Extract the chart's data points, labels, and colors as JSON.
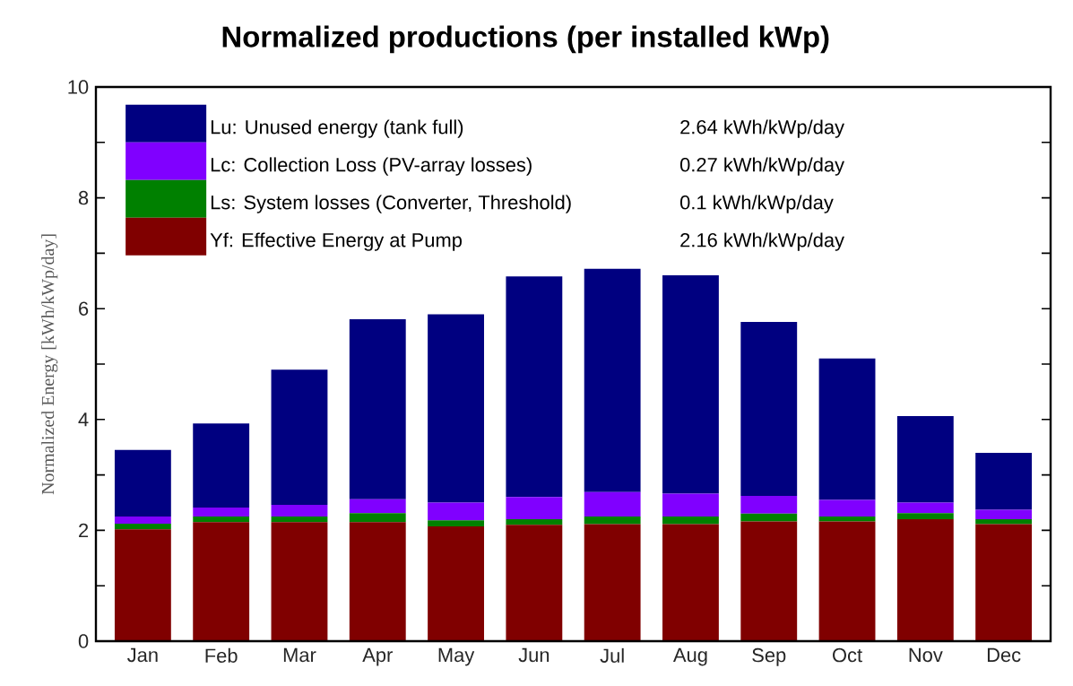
{
  "chart_data": {
    "type": "bar",
    "title": "Normalized productions (per installed kWp)",
    "ylabel": "Normalized Energy [kWh/kWp/day]",
    "categories": [
      "Jan",
      "Feb",
      "Mar",
      "Apr",
      "May",
      "Jun",
      "Jul",
      "Aug",
      "Sep",
      "Oct",
      "Nov",
      "Dec"
    ],
    "stacked": true,
    "series": [
      {
        "name": "Yf: Effective Energy at Pump",
        "color": "#800000",
        "values": [
          2.02,
          2.15,
          2.15,
          2.15,
          2.07,
          2.1,
          2.11,
          2.11,
          2.16,
          2.16,
          2.2,
          2.11
        ]
      },
      {
        "name": "Ls: System losses (Converter, Threshold)",
        "color": "#008000",
        "values": [
          0.1,
          0.1,
          0.1,
          0.16,
          0.11,
          0.1,
          0.14,
          0.14,
          0.14,
          0.09,
          0.11,
          0.09
        ]
      },
      {
        "name": "Lc: Collection Loss (PV-array losses)",
        "color": "#8000ff",
        "values": [
          0.13,
          0.16,
          0.21,
          0.25,
          0.32,
          0.4,
          0.44,
          0.41,
          0.32,
          0.3,
          0.19,
          0.17
        ]
      },
      {
        "name": "Lu: Unused energy (tank full)",
        "color": "#000080",
        "values": [
          1.2,
          1.52,
          2.44,
          3.25,
          3.4,
          3.98,
          4.03,
          3.94,
          3.14,
          2.55,
          1.56,
          1.03
        ]
      }
    ],
    "annotations": [
      "2.16 kWh/kWp/day",
      "0.1 kWh/kWp/day",
      "0.27 kWh/kWp/day",
      "2.64 kWh/kWp/day"
    ],
    "ylim": [
      0,
      10
    ],
    "yticks": [
      0,
      2,
      4,
      6,
      8,
      10
    ],
    "legend": "top left"
  }
}
